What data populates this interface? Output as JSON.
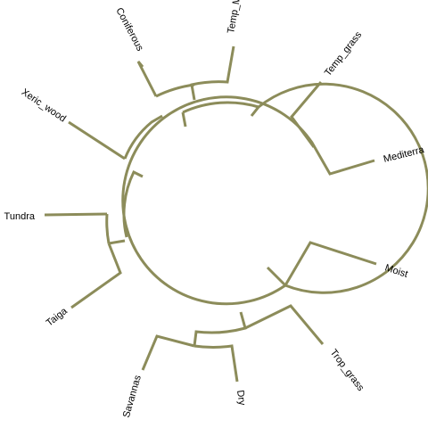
{
  "diagram": {
    "type": "circular-dendrogram",
    "edge_color": "#8c8c5a",
    "tips": [
      {
        "id": "temp_m",
        "label": "Temp_M"
      },
      {
        "id": "temp_grass",
        "label": "Temp_grass"
      },
      {
        "id": "mediterra",
        "label": "Mediterra"
      },
      {
        "id": "moist",
        "label": "Moist"
      },
      {
        "id": "trop_grass",
        "label": "Trop_grass"
      },
      {
        "id": "dry",
        "label": "Dry"
      },
      {
        "id": "savannas",
        "label": "Savannas"
      },
      {
        "id": "taiga",
        "label": "Taiga"
      },
      {
        "id": "tundra",
        "label": "Tundra"
      },
      {
        "id": "xeric_wood",
        "label": "Xeric_wood"
      },
      {
        "id": "coniferous",
        "label": "Coniferous"
      }
    ]
  }
}
